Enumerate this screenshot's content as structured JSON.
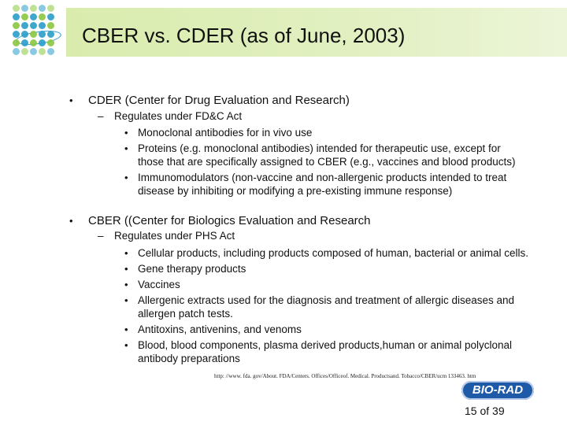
{
  "slide": {
    "title": "CBER vs. CDER (as of June, 2003)",
    "page_number": "15 of 39"
  },
  "sections": [
    {
      "heading": "CDER (Center for Drug Evaluation and Research)",
      "sub": "Regulates under FD&C Act",
      "items": [
        [
          "Monoclonal antibodies for in vivo use"
        ],
        [
          "Proteins (e.g. monoclonal antibodies) intended for therapeutic use, except for",
          "those that are specifically assigned to CBER (e.g., vaccines and blood products)"
        ],
        [
          "Immunomodulators (non-vaccine and non-allergenic products intended to treat",
          "disease by inhibiting or modifying a pre-existing immune response)"
        ]
      ]
    },
    {
      "heading": "CBER ((Center for Biologics Evaluation and Research",
      "sub": "Regulates under PHS Act",
      "items": [
        [
          "Cellular products, including products composed of human, bacterial or animal cells."
        ],
        [
          "Gene therapy products"
        ],
        [
          "Vaccines"
        ],
        [
          "Allergenic extracts used for the diagnosis and treatment of allergic diseases and",
          "allergen patch tests."
        ],
        [
          "Antitoxins, antivenins, and venoms"
        ],
        [
          "Blood, blood components, plasma derived products,human or animal polyclonal",
          "antibody preparations"
        ]
      ]
    }
  ],
  "footer": {
    "url": "http: //www. fda. gov/About. FDA/Centers. Offices/Officeof. Medical. Productsand. Tobacco/CBER/ucm 133463. htm",
    "logo_text": "BIO-RAD"
  },
  "colors": {
    "title_bar": "#d9ecad",
    "logo_blue": "#2a9cc9",
    "logo_green": "#8cc63f",
    "biorad_blue": "#1e5aa8"
  }
}
